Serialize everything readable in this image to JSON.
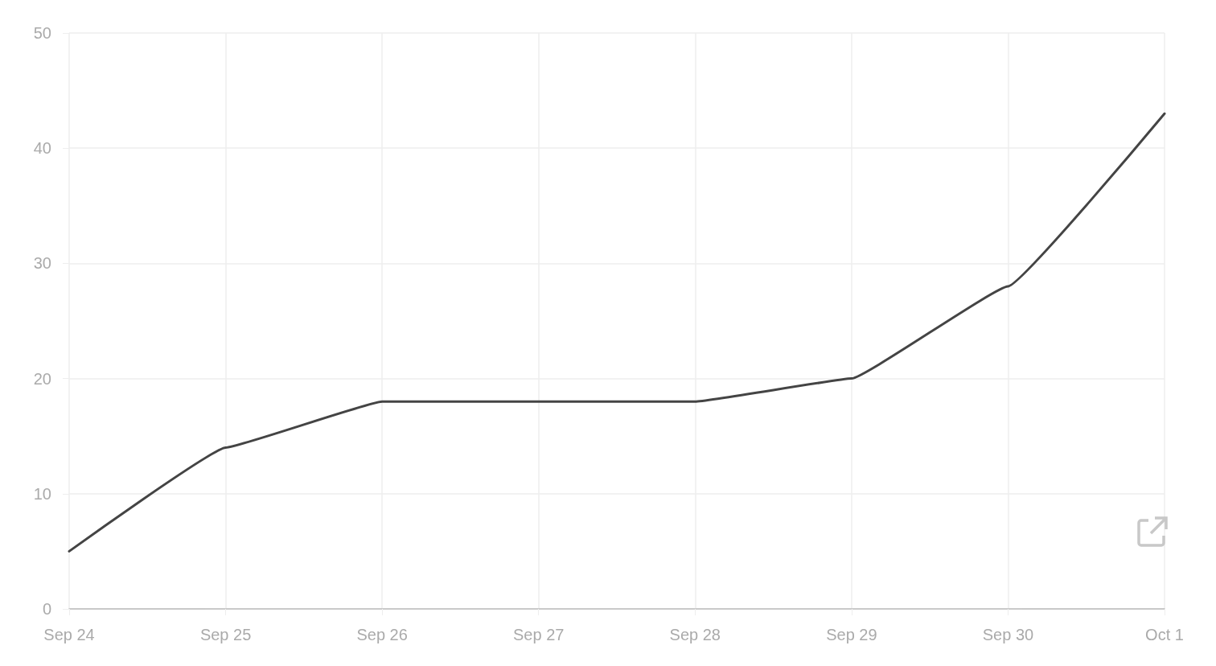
{
  "chart_data": {
    "type": "line",
    "categories": [
      "Sep 24",
      "Sep 25",
      "Sep 26",
      "Sep 27",
      "Sep 28",
      "Sep 29",
      "Sep 30",
      "Oct 1"
    ],
    "series": [
      {
        "color": "#444444",
        "values": [
          5,
          14,
          18,
          18,
          18,
          20,
          28,
          43
        ]
      }
    ],
    "ylim": [
      0,
      50
    ],
    "yticks": [
      0,
      10,
      20,
      30,
      40,
      50
    ],
    "grid": true,
    "marker": "none",
    "line_style": "solid"
  }
}
